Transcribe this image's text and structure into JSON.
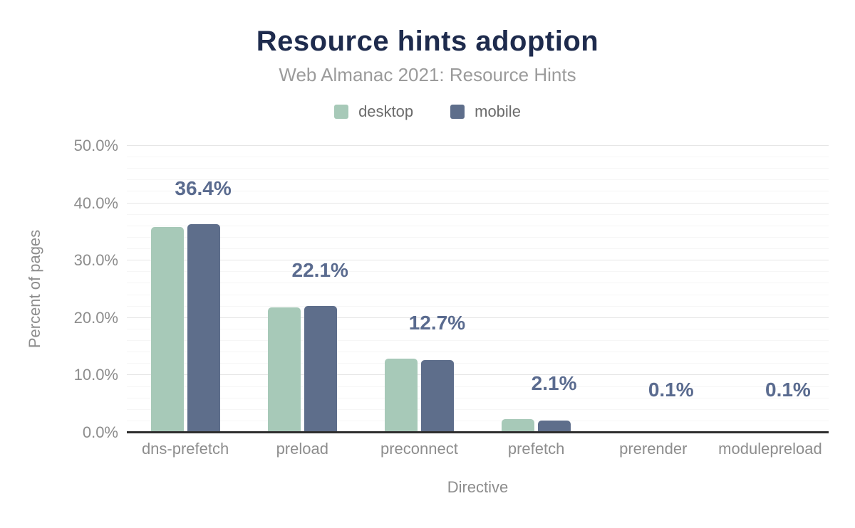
{
  "chart_data": {
    "type": "bar",
    "title": "Resource hints adoption",
    "subtitle": "Web Almanac 2021: Resource Hints",
    "xlabel": "Directive",
    "ylabel": "Percent of pages",
    "ylim": [
      0,
      50
    ],
    "y_major_step": 10,
    "y_minor_step": 2,
    "grid": true,
    "legend_position": "top",
    "y_ticks": [
      {
        "value": 0,
        "label": "0.0%"
      },
      {
        "value": 10,
        "label": "10.0%"
      },
      {
        "value": 20,
        "label": "20.0%"
      },
      {
        "value": 30,
        "label": "30.0%"
      },
      {
        "value": 40,
        "label": "40.0%"
      },
      {
        "value": 50,
        "label": "50.0%"
      }
    ],
    "categories": [
      "dns-prefetch",
      "preload",
      "preconnect",
      "prefetch",
      "prerender",
      "modulepreload"
    ],
    "series": [
      {
        "name": "desktop",
        "color": "#a7c9b8",
        "values": [
          35.9,
          21.8,
          12.9,
          2.3,
          0.1,
          0.1
        ]
      },
      {
        "name": "mobile",
        "color": "#5e6e8b",
        "values": [
          36.4,
          22.1,
          12.7,
          2.1,
          0.1,
          0.1
        ]
      }
    ],
    "data_labels": [
      "36.4%",
      "22.1%",
      "12.7%",
      "2.1%",
      "0.1%",
      "0.1%"
    ]
  },
  "colors": {
    "background": "#ffffff",
    "title": "#1e2b4d",
    "subtitle": "#9b9b9b",
    "legend_text": "#6b6b6b",
    "axis_text": "#8d8d8d",
    "data_label": "#5a6b8f",
    "axis_line": "#2e2e2e",
    "grid_major": "#e6e6e6",
    "grid_minor": "#f6f6f6"
  }
}
